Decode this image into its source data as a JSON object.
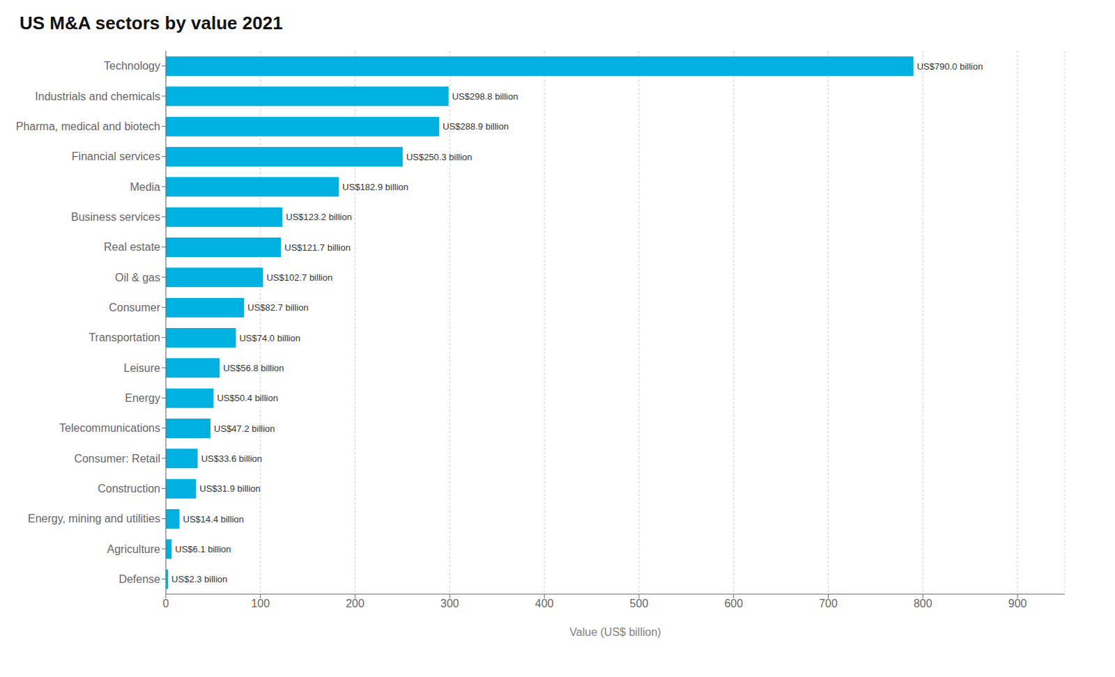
{
  "chart_data": {
    "type": "bar",
    "title": "US M&A sectors by value 2021",
    "orientation": "horizontal",
    "categories": [
      "Technology",
      "Industrials and chemicals",
      "Pharma, medical and biotech",
      "Financial services",
      "Media",
      "Business services",
      "Real estate",
      "Oil & gas",
      "Consumer",
      "Transportation",
      "Leisure",
      "Energy",
      "Telecommunications",
      "Consumer: Retail",
      "Construction",
      "Energy, mining and utilities",
      "Agriculture",
      "Defense"
    ],
    "values": [
      790.0,
      298.8,
      288.9,
      250.3,
      182.9,
      123.2,
      121.7,
      102.7,
      82.7,
      74.0,
      56.8,
      50.4,
      47.2,
      33.6,
      31.9,
      14.4,
      6.1,
      2.3
    ],
    "value_labels": [
      "US$790.0 billion",
      "US$298.8 billion",
      "US$288.9 billion",
      "US$250.3 billion",
      "US$182.9 billion",
      "US$123.2 billion",
      "US$121.7 billion",
      "US$102.7 billion",
      "US$82.7 billion",
      "US$74.0 billion",
      "US$56.8 billion",
      "US$50.4 billion",
      "US$47.2 billion",
      "US$33.6 billion",
      "US$31.9 billion",
      "US$14.4 billion",
      "US$6.1 billion",
      "US$2.3 billion"
    ],
    "data_labels": true,
    "color": "#00b0e0",
    "xlabel": "Value (US$ billion)",
    "xlim": [
      0,
      950
    ],
    "xticks": [
      0,
      100,
      200,
      300,
      400,
      500,
      600,
      700,
      800,
      900
    ],
    "grid": true
  }
}
